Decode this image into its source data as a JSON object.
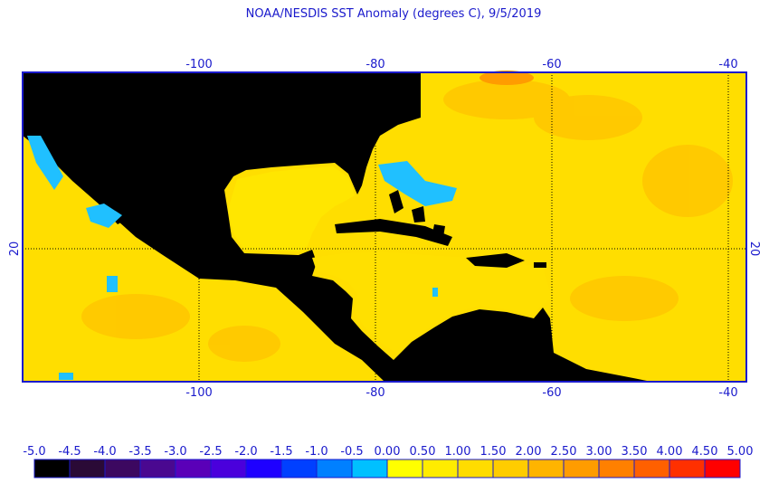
{
  "title": "NOAA/NESDIS SST Anomaly (degrees C), 9/5/2019",
  "lon_labels": [
    "-100",
    "-80",
    "-60",
    "-40"
  ],
  "lat_labels": [
    "20"
  ],
  "colorbar": {
    "labels": [
      "-5.0",
      "-4.5",
      "-4.0",
      "-3.5",
      "-3.0",
      "-2.5",
      "-2.0",
      "-1.5",
      "-1.0",
      "-0.5",
      "0.00",
      "0.50",
      "1.00",
      "1.50",
      "2.00",
      "2.50",
      "3.00",
      "3.50",
      "4.00",
      "4.50",
      "5.00"
    ],
    "colors": [
      "#000000",
      "#2a0a36",
      "#3c0860",
      "#4a0890",
      "#5a00b8",
      "#4a00dc",
      "#1e00ff",
      "#0040ff",
      "#0080ff",
      "#00c0ff",
      "#ffff00",
      "#ffec00",
      "#ffdc00",
      "#ffcc00",
      "#ffb400",
      "#ff9c00",
      "#ff8000",
      "#ff6000",
      "#ff3000",
      "#ff0000"
    ]
  }
}
